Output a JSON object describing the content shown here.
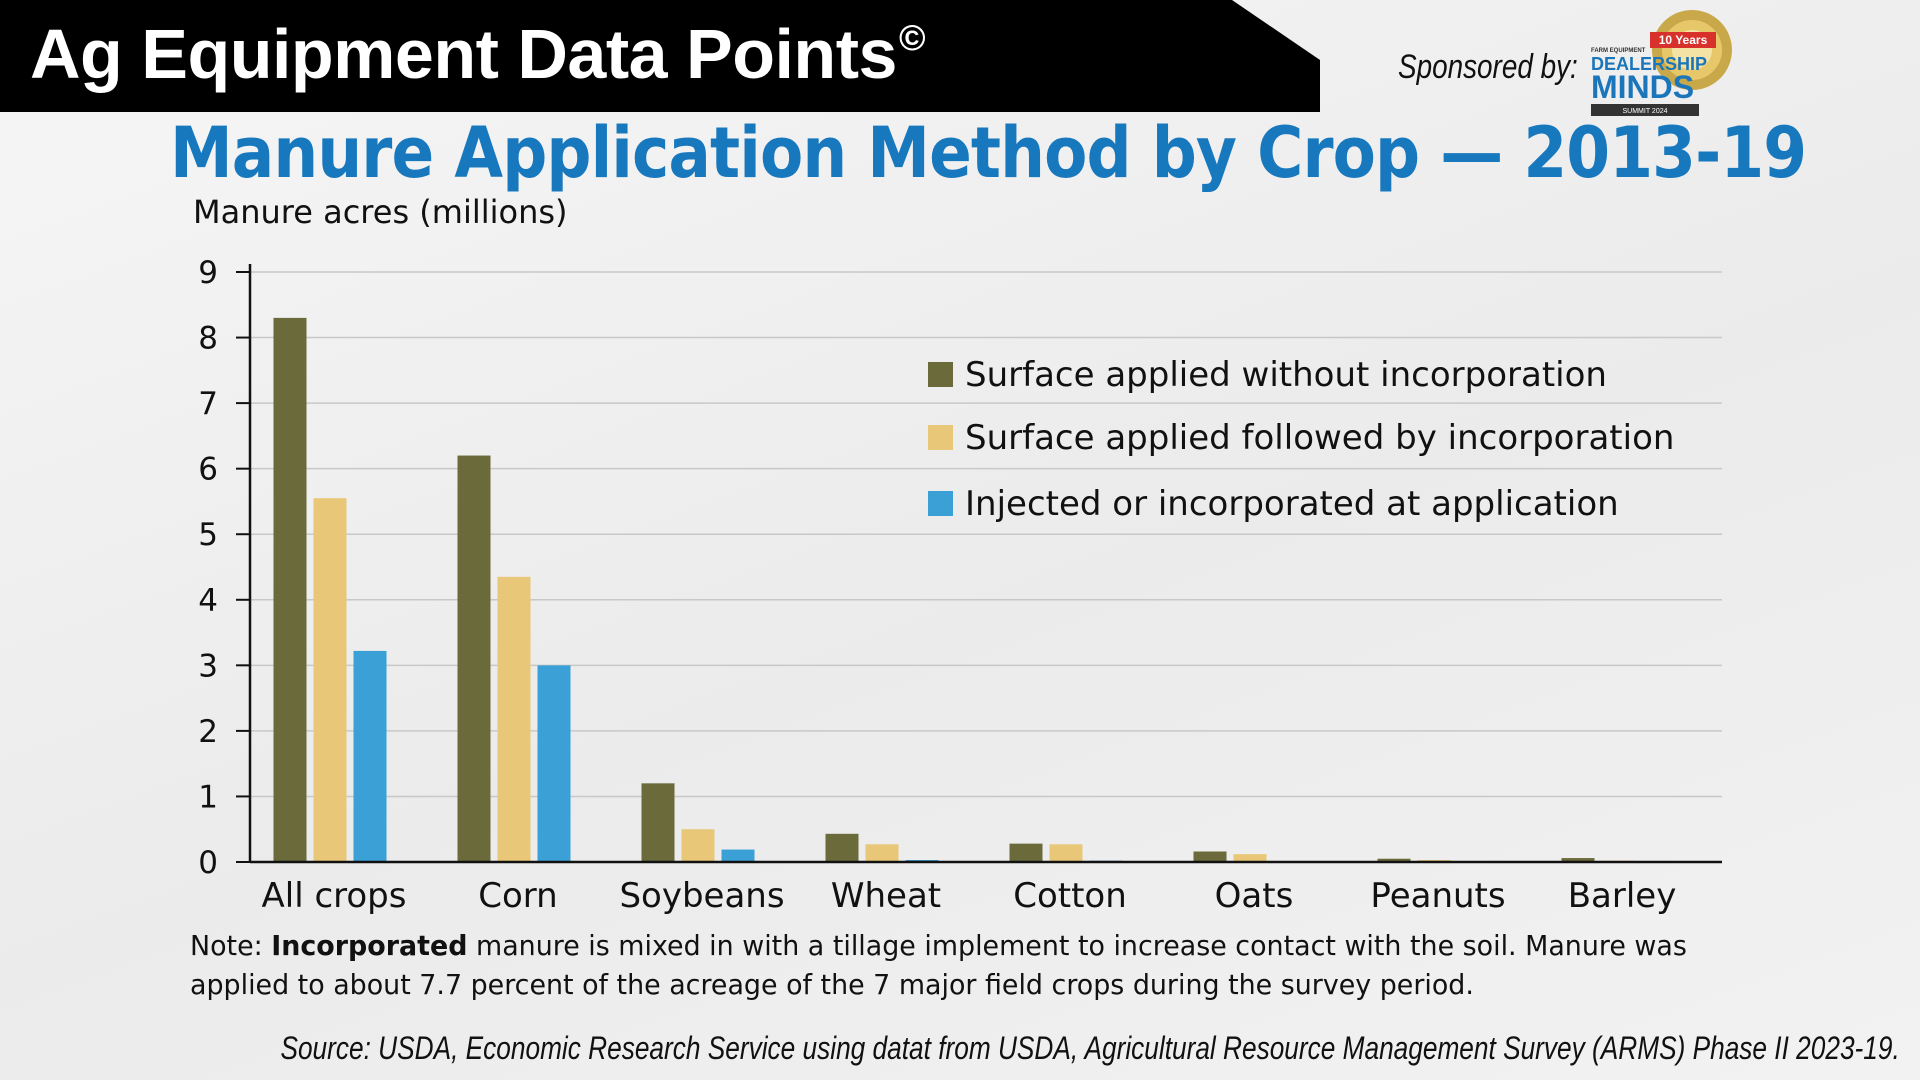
{
  "header": {
    "brand_title": "Ag Equipment Data Points",
    "copyright_mark": "©",
    "sponsor_label": "Sponsored by:",
    "sponsor_logo": {
      "top_text": "FARM EQUIPMENT",
      "ribbon_text": "10 Years",
      "line1": "DEALERSHIP",
      "line2": "MINDS",
      "bottom_text": "SUMMIT 2024"
    }
  },
  "note": {
    "prefix": "Note: ",
    "bold_term": "Incorporated",
    "rest": " manure is mixed in with a tillage implement to increase contact with the soil. Manure was applied to about 7.7 percent of the acreage of the 7 major field crops during the survey period."
  },
  "source": "Source: USDA, Economic Research Service using datat from USDA, Agricultural Resource Management Survey (ARMS) Phase II 2023-19.",
  "chart_data": {
    "type": "bar",
    "title": "Manure Application Method by Crop — 2013-19",
    "ylabel": "Manure acres (millions)",
    "xlabel": "",
    "ylim": [
      0,
      9
    ],
    "yticks": [
      0,
      1,
      2,
      3,
      4,
      5,
      6,
      7,
      8,
      9
    ],
    "grid": true,
    "legend_position": "top-right",
    "categories": [
      "All crops",
      "Corn",
      "Soybeans",
      "Wheat",
      "Cotton",
      "Oats",
      "Peanuts",
      "Barley"
    ],
    "series": [
      {
        "name": "Surface applied without incorporation",
        "color": "#6b6a3b",
        "values": [
          8.3,
          6.2,
          1.2,
          0.43,
          0.28,
          0.16,
          0.05,
          0.06
        ]
      },
      {
        "name": "Surface applied followed by incorporation",
        "color": "#e8c878",
        "values": [
          5.55,
          4.35,
          0.5,
          0.27,
          0.27,
          0.12,
          0.03,
          0.02
        ]
      },
      {
        "name": "Injected or incorporated at application",
        "color": "#3aa0d6",
        "values": [
          3.22,
          3.0,
          0.19,
          0.03,
          0.02,
          0.0,
          0.0,
          0.0
        ]
      }
    ]
  }
}
